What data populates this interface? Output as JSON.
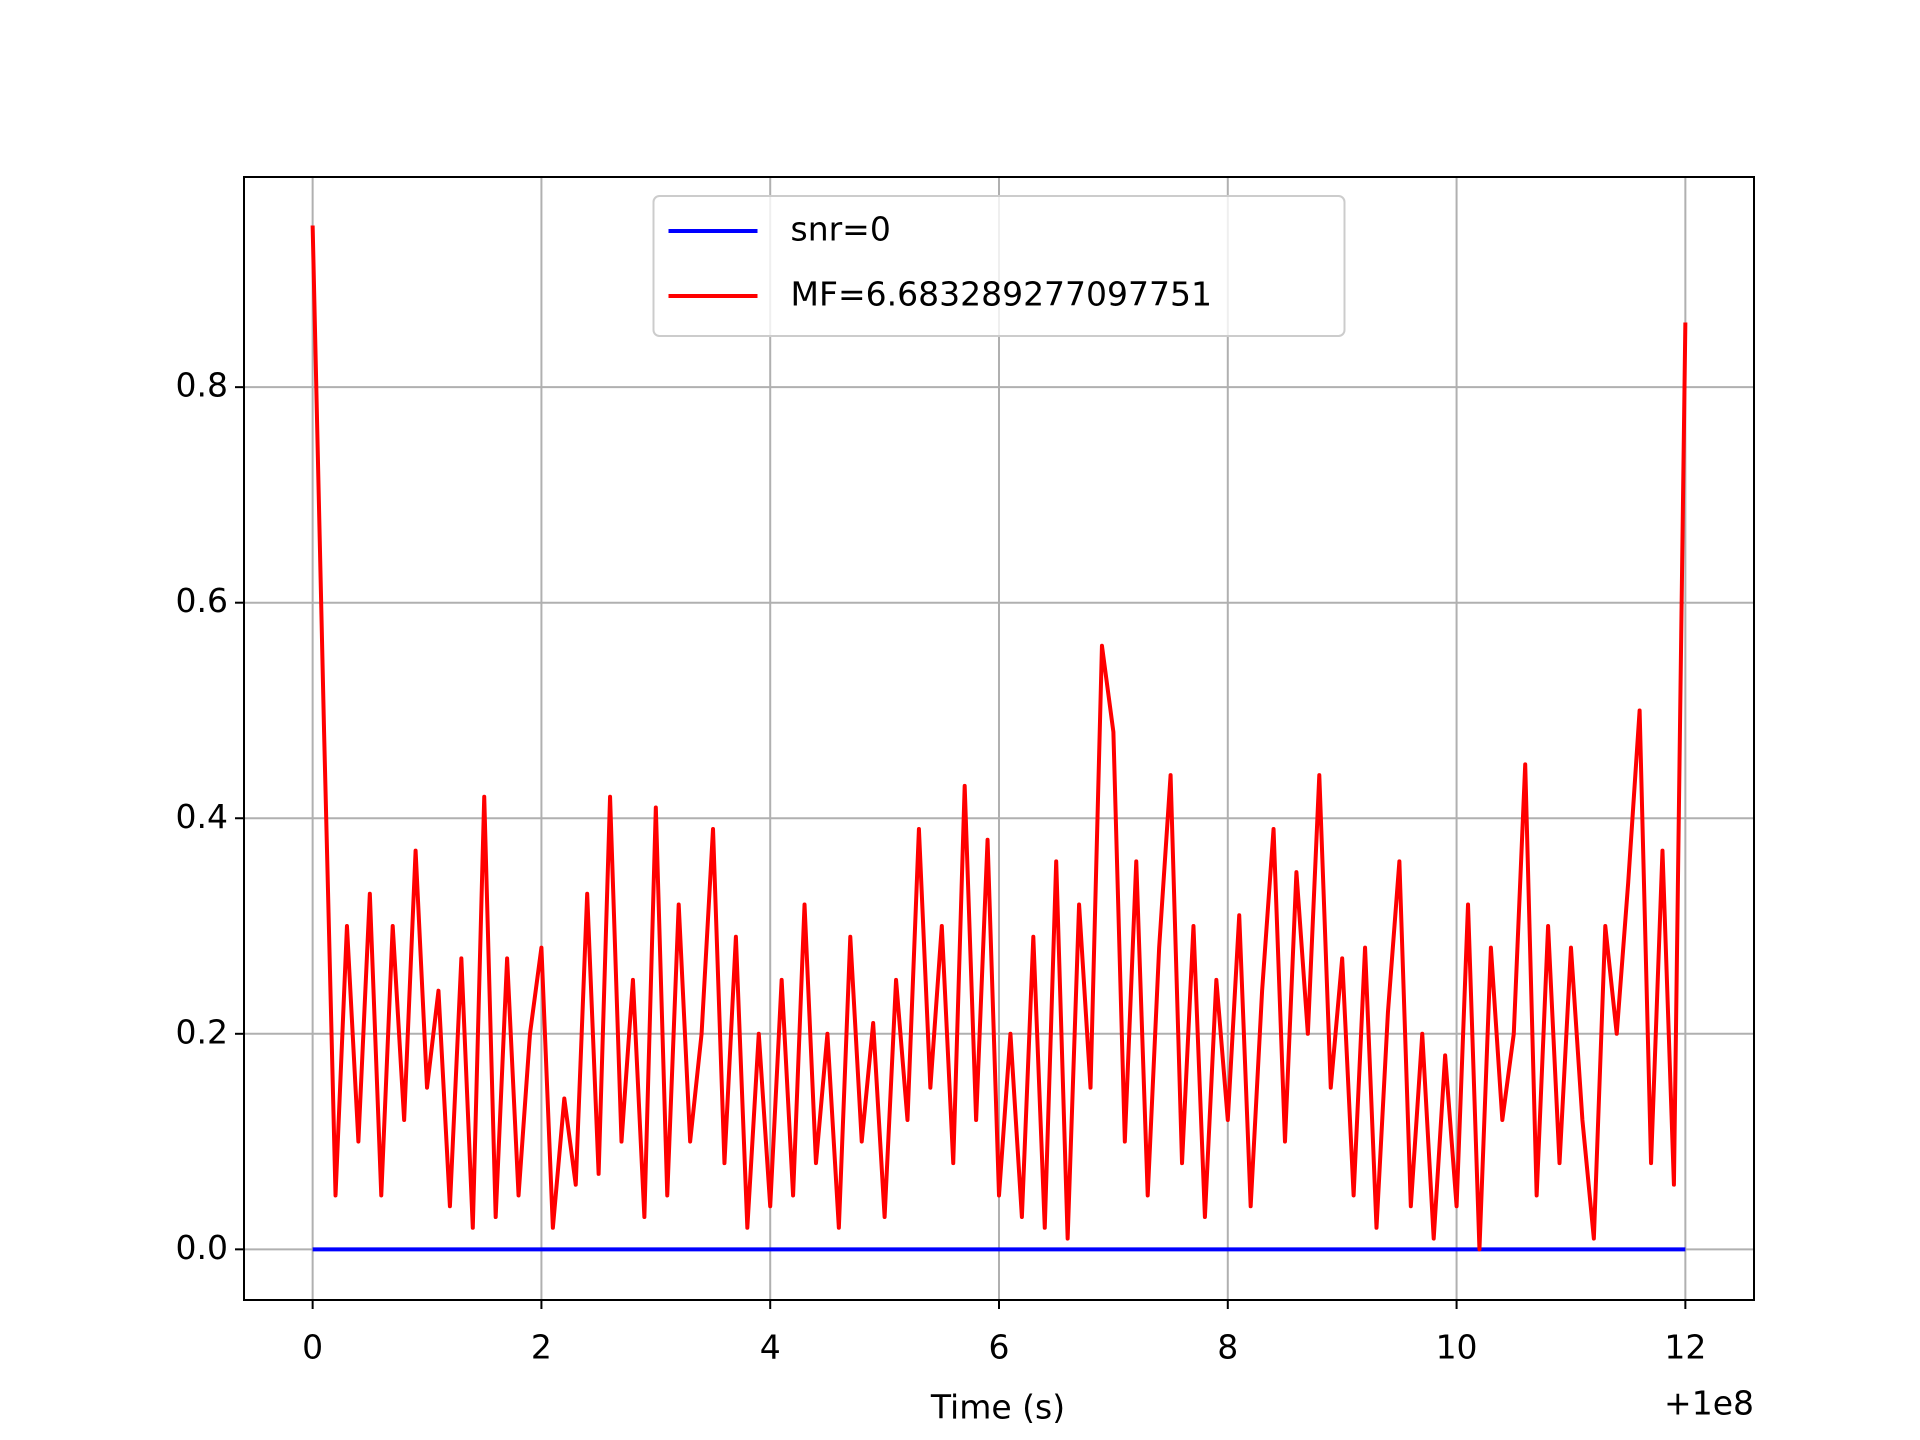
{
  "chart_data": {
    "type": "line",
    "xlabel": "Time (s)",
    "x_offset_label": "+1e8",
    "xlim": [
      -0.6,
      12.6
    ],
    "xticks": [
      0,
      2,
      4,
      6,
      8,
      10,
      12
    ],
    "ylim": [
      -0.047,
      0.995
    ],
    "yticks": [
      {
        "value": 0,
        "label": "0.0"
      },
      0.2,
      0.4,
      0.6,
      0.8
    ],
    "grid": true,
    "legend": "upper center",
    "series": [
      {
        "name": "snr=0",
        "color": "#0000ff",
        "x": [
          0,
          12
        ],
        "values": [
          0,
          0
        ]
      },
      {
        "name": "MF=6.683289277097751",
        "color": "#ff0000",
        "x": [
          0,
          0.1,
          0.2,
          0.3,
          0.4,
          0.5,
          0.6,
          0.7,
          0.8,
          0.9,
          1,
          1.1,
          1.2,
          1.3,
          1.4,
          1.5,
          1.6,
          1.7,
          1.8,
          1.9,
          2,
          2.1,
          2.2,
          2.3,
          2.4,
          2.5,
          2.6,
          2.7,
          2.8,
          2.9,
          3,
          3.1,
          3.2,
          3.3,
          3.4,
          3.5,
          3.6,
          3.7,
          3.8,
          3.9,
          4,
          4.1,
          4.2,
          4.3,
          4.4,
          4.5,
          4.6,
          4.7,
          4.8,
          4.9,
          5,
          5.1,
          5.2,
          5.3,
          5.4,
          5.5,
          5.6,
          5.7,
          5.8,
          5.9,
          6,
          6.1,
          6.2,
          6.3,
          6.4,
          6.5,
          6.6,
          6.7,
          6.8,
          6.9,
          7,
          7.1,
          7.2,
          7.3,
          7.4,
          7.5,
          7.6,
          7.7,
          7.8,
          7.9,
          8,
          8.1,
          8.2,
          8.3,
          8.4,
          8.5,
          8.6,
          8.7,
          8.8,
          8.9,
          9,
          9.1,
          9.2,
          9.3,
          9.4,
          9.5,
          9.6,
          9.7,
          9.8,
          9.9,
          10,
          10.1,
          10.2,
          10.3,
          10.4,
          10.5,
          10.6,
          10.7,
          10.8,
          10.9,
          11,
          11.1,
          11.2,
          11.3,
          11.4,
          11.5,
          11.6,
          11.7,
          11.8,
          11.9,
          12
        ],
        "values": [
          0.95,
          0.48,
          0.05,
          0.3,
          0.1,
          0.33,
          0.05,
          0.3,
          0.12,
          0.37,
          0.15,
          0.24,
          0.04,
          0.27,
          0.02,
          0.42,
          0.03,
          0.27,
          0.05,
          0.2,
          0.28,
          0.02,
          0.14,
          0.06,
          0.33,
          0.07,
          0.42,
          0.1,
          0.25,
          0.03,
          0.41,
          0.05,
          0.32,
          0.1,
          0.2,
          0.39,
          0.08,
          0.29,
          0.02,
          0.2,
          0.04,
          0.25,
          0.05,
          0.32,
          0.08,
          0.2,
          0.02,
          0.29,
          0.1,
          0.21,
          0.03,
          0.25,
          0.12,
          0.39,
          0.15,
          0.3,
          0.08,
          0.43,
          0.12,
          0.38,
          0.05,
          0.2,
          0.03,
          0.29,
          0.02,
          0.36,
          0.01,
          0.32,
          0.15,
          0.56,
          0.48,
          0.1,
          0.36,
          0.05,
          0.28,
          0.44,
          0.08,
          0.3,
          0.03,
          0.25,
          0.12,
          0.31,
          0.04,
          0.24,
          0.39,
          0.1,
          0.35,
          0.2,
          0.44,
          0.15,
          0.27,
          0.05,
          0.28,
          0.02,
          0.22,
          0.36,
          0.04,
          0.2,
          0.01,
          0.18,
          0.04,
          0.32,
          0,
          0.28,
          0.12,
          0.2,
          0.45,
          0.05,
          0.3,
          0.08,
          0.28,
          0.12,
          0.01,
          0.3,
          0.2,
          0.34,
          0.5,
          0.08,
          0.37,
          0.06,
          0.86
        ]
      }
    ]
  }
}
